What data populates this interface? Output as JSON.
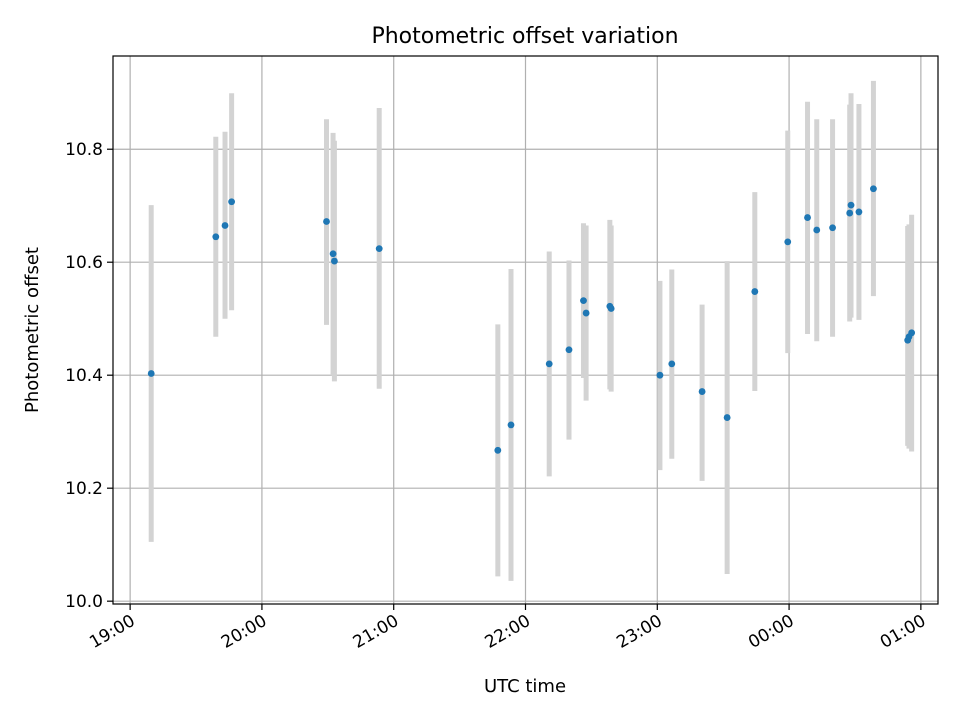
{
  "chart_data": {
    "type": "scatter",
    "title": "Photometric offset variation",
    "xlabel": "UTC time",
    "ylabel": "Photometric offset",
    "x_unit": "hours (UTC, continuing past midnight)",
    "xlim": [
      18.87,
      25.13
    ],
    "ylim": [
      9.995,
      10.965
    ],
    "grid": true,
    "x_ticks": [
      {
        "value": 19,
        "label": "19:00"
      },
      {
        "value": 20,
        "label": "20:00"
      },
      {
        "value": 21,
        "label": "21:00"
      },
      {
        "value": 22,
        "label": "22:00"
      },
      {
        "value": 23,
        "label": "23:00"
      },
      {
        "value": 24,
        "label": "00:00"
      },
      {
        "value": 25,
        "label": "01:00"
      }
    ],
    "y_ticks": [
      {
        "value": 10.0,
        "label": "10.0"
      },
      {
        "value": 10.2,
        "label": "10.2"
      },
      {
        "value": 10.4,
        "label": "10.4"
      },
      {
        "value": 10.6,
        "label": "10.6"
      },
      {
        "value": 10.8,
        "label": "10.8"
      }
    ],
    "points": [
      {
        "x": 19.16,
        "y": 10.403,
        "err_low": 10.105,
        "err_high": 10.701
      },
      {
        "x": 19.65,
        "y": 10.645,
        "err_low": 10.468,
        "err_high": 10.822
      },
      {
        "x": 19.72,
        "y": 10.665,
        "err_low": 10.5,
        "err_high": 10.831
      },
      {
        "x": 19.77,
        "y": 10.707,
        "err_low": 10.515,
        "err_high": 10.899
      },
      {
        "x": 20.49,
        "y": 10.672,
        "err_low": 10.489,
        "err_high": 10.853
      },
      {
        "x": 20.54,
        "y": 10.615,
        "err_low": 10.4,
        "err_high": 10.829
      },
      {
        "x": 20.55,
        "y": 10.602,
        "err_low": 10.389,
        "err_high": 10.815
      },
      {
        "x": 20.89,
        "y": 10.624,
        "err_low": 10.376,
        "err_high": 10.873
      },
      {
        "x": 21.79,
        "y": 10.267,
        "err_low": 10.044,
        "err_high": 10.49
      },
      {
        "x": 21.89,
        "y": 10.312,
        "err_low": 10.036,
        "err_high": 10.588
      },
      {
        "x": 22.18,
        "y": 10.42,
        "err_low": 10.221,
        "err_high": 10.619
      },
      {
        "x": 22.33,
        "y": 10.445,
        "err_low": 10.286,
        "err_high": 10.603
      },
      {
        "x": 22.44,
        "y": 10.532,
        "err_low": 10.395,
        "err_high": 10.669
      },
      {
        "x": 22.46,
        "y": 10.51,
        "err_low": 10.355,
        "err_high": 10.665
      },
      {
        "x": 22.64,
        "y": 10.522,
        "err_low": 10.375,
        "err_high": 10.675
      },
      {
        "x": 22.65,
        "y": 10.518,
        "err_low": 10.371,
        "err_high": 10.665
      },
      {
        "x": 23.02,
        "y": 10.4,
        "err_low": 10.232,
        "err_high": 10.567
      },
      {
        "x": 23.11,
        "y": 10.42,
        "err_low": 10.252,
        "err_high": 10.587
      },
      {
        "x": 23.34,
        "y": 10.371,
        "err_low": 10.213,
        "err_high": 10.525
      },
      {
        "x": 23.53,
        "y": 10.325,
        "err_low": 10.048,
        "err_high": 10.602
      },
      {
        "x": 23.74,
        "y": 10.548,
        "err_low": 10.372,
        "err_high": 10.724
      },
      {
        "x": 23.99,
        "y": 10.636,
        "err_low": 10.439,
        "err_high": 10.833
      },
      {
        "x": 24.14,
        "y": 10.679,
        "err_low": 10.473,
        "err_high": 10.884
      },
      {
        "x": 24.21,
        "y": 10.657,
        "err_low": 10.46,
        "err_high": 10.853
      },
      {
        "x": 24.33,
        "y": 10.661,
        "err_low": 10.468,
        "err_high": 10.853
      },
      {
        "x": 24.46,
        "y": 10.687,
        "err_low": 10.495,
        "err_high": 10.879
      },
      {
        "x": 24.47,
        "y": 10.701,
        "err_low": 10.502,
        "err_high": 10.899
      },
      {
        "x": 24.53,
        "y": 10.689,
        "err_low": 10.498,
        "err_high": 10.88
      },
      {
        "x": 24.64,
        "y": 10.73,
        "err_low": 10.54,
        "err_high": 10.921
      },
      {
        "x": 24.9,
        "y": 10.462,
        "err_low": 10.275,
        "err_high": 10.664
      },
      {
        "x": 24.91,
        "y": 10.468,
        "err_low": 10.27,
        "err_high": 10.667
      },
      {
        "x": 24.93,
        "y": 10.475,
        "err_low": 10.265,
        "err_high": 10.684
      }
    ],
    "colors": {
      "point": "#1f77b4",
      "errbar": "#d3d3d3",
      "grid": "#b0b0b0"
    }
  }
}
